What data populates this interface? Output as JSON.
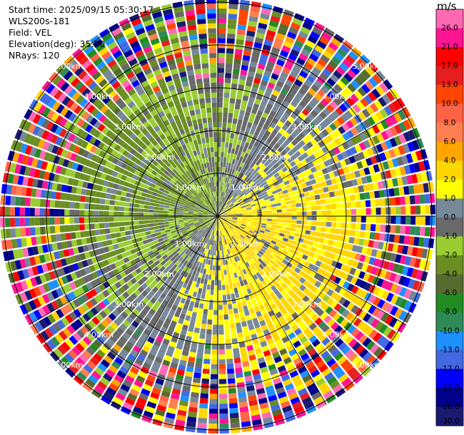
{
  "info": {
    "start_time": "Start time: 2025/09/15 05:30:17",
    "instrument": "WLS200s-181",
    "field": "Field: VEL",
    "elevation": "Elevation(deg): 35.00",
    "nrays": "NRays: 120"
  },
  "chart_data": {
    "type": "heatmap",
    "projection": "polar-ppi",
    "grid": true,
    "range_rings_km": [
      1.0,
      2.0,
      3.0,
      4.0,
      5.0
    ],
    "ring_labels": [
      "1.00km",
      "2.00km",
      "3.00km",
      "4.00km",
      "5.00km"
    ],
    "colorbar": {
      "unit": "m/s",
      "placement": "right",
      "ticks": [
        "26.0",
        "21.0",
        "17.0",
        "13.0",
        "10.0",
        "8.0",
        "6.0",
        "4.0",
        "2.0",
        "1.0",
        "0.0",
        "-1.0",
        "-2.0",
        "-4.0",
        "-6.0",
        "-8.0",
        "-10.0",
        "-13.0",
        "-17.0",
        "-21.0",
        "-26.0",
        "-30.0"
      ],
      "bands": [
        {
          "lo": 26,
          "hi": 30,
          "color": "#ff69b4"
        },
        {
          "lo": 21,
          "hi": 26,
          "color": "#ff1493"
        },
        {
          "lo": 17,
          "hi": 21,
          "color": "#ff0000"
        },
        {
          "lo": 13,
          "hi": 17,
          "color": "#e61e1e"
        },
        {
          "lo": 10,
          "hi": 13,
          "color": "#ff4500"
        },
        {
          "lo": 8,
          "hi": 10,
          "color": "#ff6347"
        },
        {
          "lo": 6,
          "hi": 8,
          "color": "#ff7f50"
        },
        {
          "lo": 4,
          "hi": 6,
          "color": "#ffa500"
        },
        {
          "lo": 2,
          "hi": 4,
          "color": "#ffd700"
        },
        {
          "lo": 1,
          "hi": 2,
          "color": "#ffff00"
        },
        {
          "lo": 0,
          "hi": 1,
          "color": "#778899"
        },
        {
          "lo": -1,
          "hi": 0,
          "color": "#696969"
        },
        {
          "lo": -2,
          "hi": -1,
          "color": "#9acd32"
        },
        {
          "lo": -4,
          "hi": -2,
          "color": "#6b8e23"
        },
        {
          "lo": -6,
          "hi": -4,
          "color": "#556b2f"
        },
        {
          "lo": -8,
          "hi": -6,
          "color": "#228b22"
        },
        {
          "lo": -10,
          "hi": -8,
          "color": "#2e8b57"
        },
        {
          "lo": -13,
          "hi": -10,
          "color": "#1e90ff"
        },
        {
          "lo": -17,
          "hi": -13,
          "color": "#4169e1"
        },
        {
          "lo": -21,
          "hi": -17,
          "color": "#0000ff"
        },
        {
          "lo": -26,
          "hi": -21,
          "color": "#00008b"
        },
        {
          "lo": -30,
          "hi": -26,
          "color": "#191970"
        }
      ]
    }
  }
}
